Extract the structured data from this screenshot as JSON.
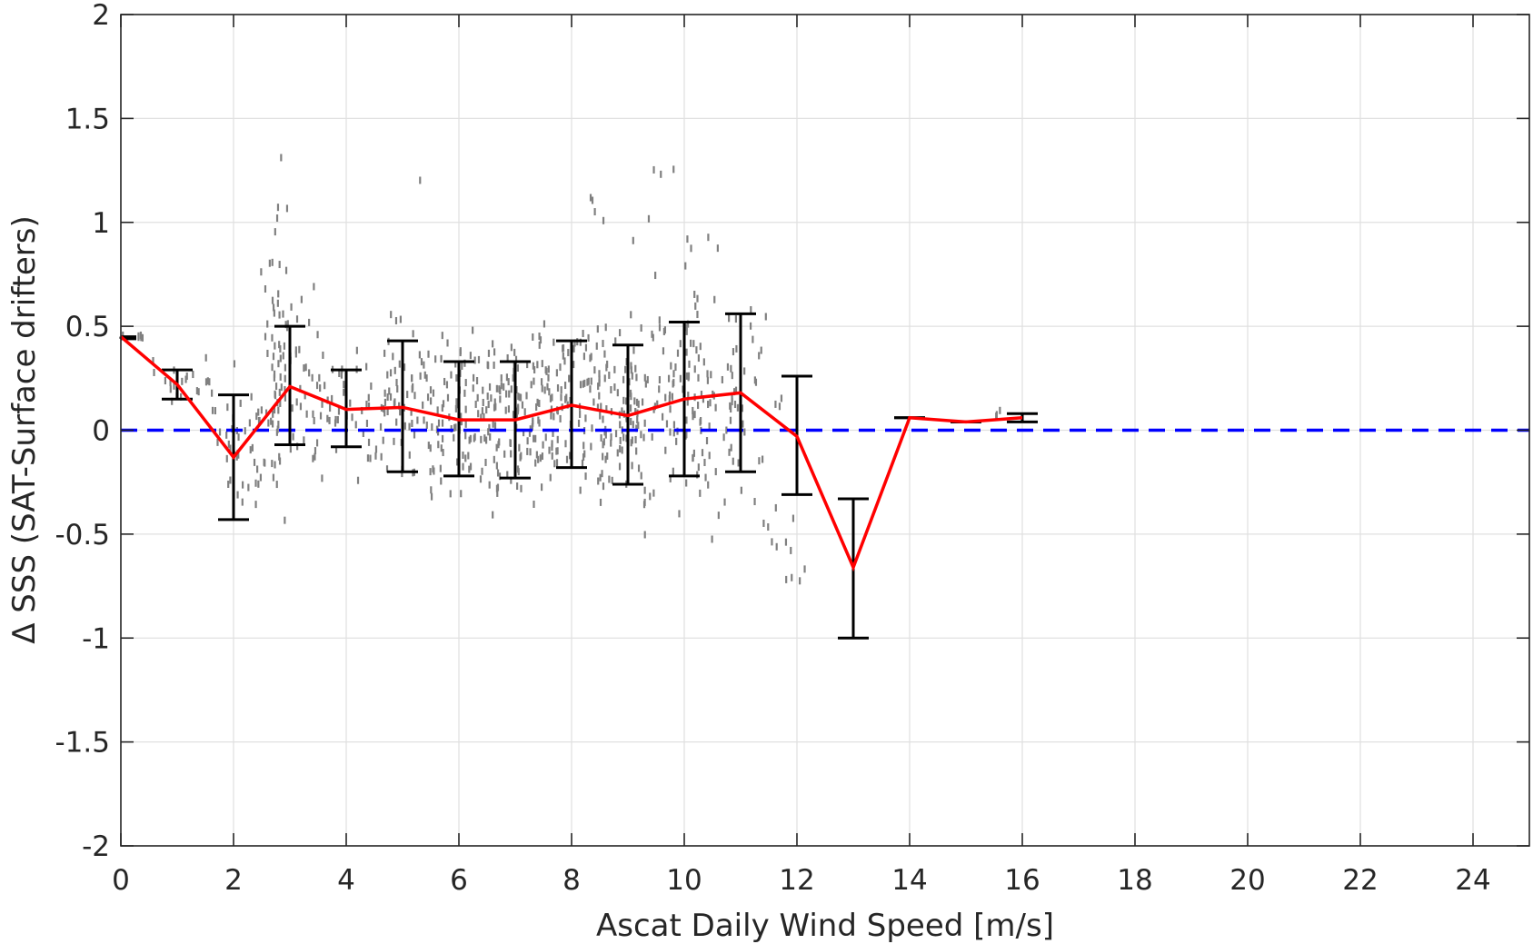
{
  "chart_data": {
    "type": "line",
    "title": "",
    "xlabel": "Ascat Daily Wind Speed [m/s]",
    "ylabel": "Δ SSS (SAT-Surface drifters)",
    "xlim": [
      0,
      25
    ],
    "ylim": [
      -2,
      2
    ],
    "x_ticks": [
      0,
      2,
      4,
      6,
      8,
      10,
      12,
      14,
      16,
      18,
      20,
      22,
      24
    ],
    "y_ticks": [
      -2,
      -1.5,
      -1,
      -0.5,
      0,
      0.5,
      1,
      1.5,
      2
    ],
    "y_tick_labels": [
      "-2",
      "-1.5",
      "-1",
      "-0.5",
      "0",
      "0.5",
      "1",
      "1.5",
      "2"
    ],
    "grid": true,
    "colors": {
      "mean_line": "#ff0000",
      "zero_line": "#0000ff",
      "error_bars": "#000000",
      "scatter": "#808080",
      "grid": "#e0e0e0",
      "axes": "#262626"
    },
    "series": [
      {
        "kind": "mean-with-error-bars",
        "x": [
          0,
          1,
          2,
          3,
          4,
          5,
          6,
          7,
          8,
          9,
          10,
          11,
          12,
          13,
          14,
          15,
          16
        ],
        "y": [
          0.45,
          0.22,
          -0.13,
          0.21,
          0.1,
          0.11,
          0.05,
          0.05,
          0.12,
          0.07,
          0.15,
          0.18,
          -0.03,
          -0.66,
          0.06,
          0.04,
          0.06
        ],
        "y_low": [
          0.44,
          0.15,
          -0.43,
          -0.07,
          -0.08,
          -0.2,
          -0.22,
          -0.23,
          -0.18,
          -0.26,
          -0.22,
          -0.2,
          -0.31,
          -1.0,
          0.06,
          0.04,
          0.04
        ],
        "y_high": [
          0.45,
          0.29,
          0.17,
          0.5,
          0.29,
          0.43,
          0.33,
          0.33,
          0.43,
          0.41,
          0.52,
          0.56,
          0.26,
          -0.33,
          0.06,
          0.04,
          0.08
        ]
      },
      {
        "kind": "reference-line",
        "y": 0
      }
    ],
    "scatter_clusters": [
      {
        "x": 0.2,
        "sx": 0.15,
        "y": 0.45,
        "sy": 0.01,
        "n": 6
      },
      {
        "x": 1.0,
        "sx": 0.3,
        "y": 0.22,
        "sy": 0.05,
        "n": 14
      },
      {
        "x": 1.6,
        "sx": 0.25,
        "y": 0.15,
        "sy": 0.15,
        "n": 10
      },
      {
        "x": 2.2,
        "sx": 0.25,
        "y": -0.1,
        "sy": 0.12,
        "n": 40
      },
      {
        "x": 2.75,
        "sx": 0.12,
        "y": 0.45,
        "sy": 0.35,
        "n": 45
      },
      {
        "x": 3.1,
        "sx": 0.3,
        "y": 0.2,
        "sy": 0.2,
        "n": 50
      },
      {
        "x": 4.0,
        "sx": 0.35,
        "y": 0.1,
        "sy": 0.14,
        "n": 45
      },
      {
        "x": 5.0,
        "sx": 0.4,
        "y": 0.1,
        "sy": 0.2,
        "n": 70
      },
      {
        "x": 6.0,
        "sx": 0.4,
        "y": 0.06,
        "sy": 0.2,
        "n": 100
      },
      {
        "x": 7.0,
        "sx": 0.4,
        "y": 0.06,
        "sy": 0.2,
        "n": 100
      },
      {
        "x": 8.0,
        "sx": 0.4,
        "y": 0.12,
        "sy": 0.22,
        "n": 110
      },
      {
        "x": 9.0,
        "sx": 0.4,
        "y": 0.09,
        "sy": 0.24,
        "n": 100
      },
      {
        "x": 10.0,
        "sx": 0.4,
        "y": 0.16,
        "sy": 0.26,
        "n": 90
      },
      {
        "x": 11.0,
        "sx": 0.35,
        "y": 0.15,
        "sy": 0.24,
        "n": 55
      },
      {
        "x": 11.6,
        "sx": 0.2,
        "y": -0.5,
        "sy": 0.06,
        "n": 8
      },
      {
        "x": 12.1,
        "sx": 0.2,
        "y": -0.69,
        "sy": 0.02,
        "n": 4
      },
      {
        "x": 15.6,
        "sx": 0.1,
        "y": 0.09,
        "sy": 0.02,
        "n": 3
      },
      {
        "x": 5.4,
        "sx": 0.05,
        "y": 1.2,
        "sy": 0.01,
        "n": 1
      },
      {
        "x": 9.7,
        "sx": 0.15,
        "y": 1.26,
        "sy": 0.02,
        "n": 3
      },
      {
        "x": 8.8,
        "sx": 0.4,
        "y": 1.05,
        "sy": 0.08,
        "n": 6
      },
      {
        "x": 10.6,
        "sx": 0.3,
        "y": 0.9,
        "sy": 0.02,
        "n": 3
      }
    ]
  }
}
